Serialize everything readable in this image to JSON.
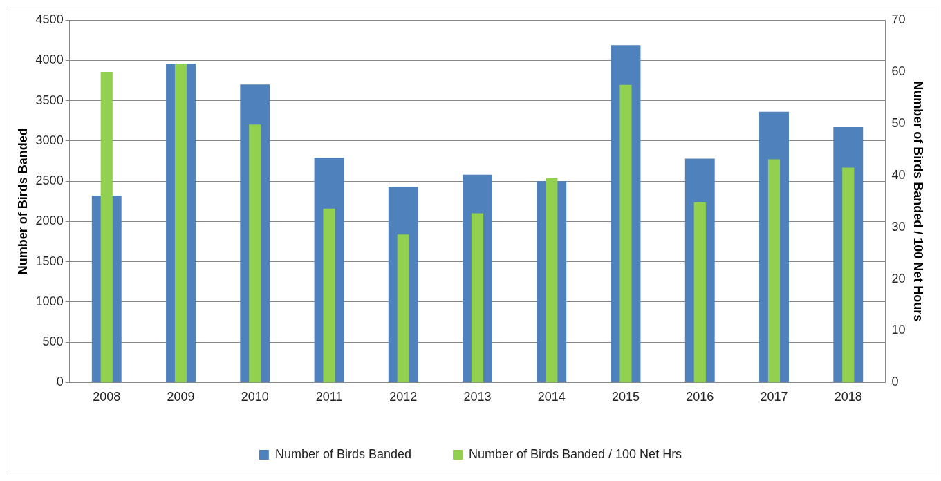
{
  "chart_data": {
    "type": "bar",
    "categories": [
      "2008",
      "2009",
      "2010",
      "2011",
      "2012",
      "2013",
      "2014",
      "2015",
      "2016",
      "2017",
      "2018"
    ],
    "ylabel": "Number of Birds Banded",
    "y2label": "Number of Birds Banded / 100 Net Hours",
    "ylim": [
      0,
      4500
    ],
    "yticks": [
      0,
      500,
      1000,
      1500,
      2000,
      2500,
      3000,
      3500,
      4000,
      4500
    ],
    "y2lim": [
      0,
      70
    ],
    "y2ticks": [
      0,
      10,
      20,
      30,
      40,
      50,
      60,
      70
    ],
    "grid": "y",
    "legend": "bottom",
    "series": [
      {
        "name": "Number of Birds Banded",
        "color": "#4f81bd",
        "values": [
          2320,
          3960,
          3700,
          2790,
          2430,
          2580,
          2500,
          4190,
          2780,
          3360,
          3170
        ]
      },
      {
        "name": "Number of Birds Banded / 100 Net Hrs",
        "color": "#92d050",
        "axis": "y2",
        "values": [
          60,
          61.5,
          49.8,
          33.6,
          28.6,
          32.7,
          39.5,
          57.5,
          34.8,
          43.1,
          41.5
        ]
      }
    ]
  }
}
